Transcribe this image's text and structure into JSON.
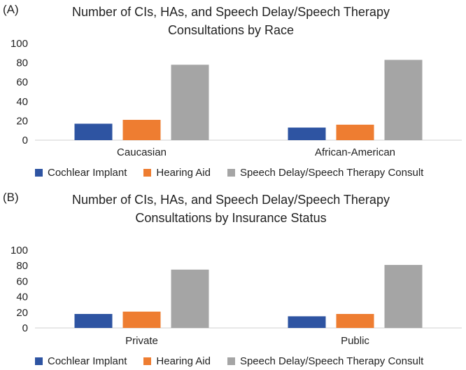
{
  "chart_data": [
    {
      "type": "bar",
      "panel_label": "(A)",
      "title_lines": [
        "Number of CIs, HAs, and Speech Delay/Speech Therapy",
        "Consultations by Race"
      ],
      "categories": [
        "Caucasian",
        "African-American"
      ],
      "series": [
        {
          "name": "Cochlear Implant",
          "color": "#2E54A2",
          "values": [
            17,
            13
          ]
        },
        {
          "name": "Hearing Aid",
          "color": "#EE7D31",
          "values": [
            21,
            16
          ]
        },
        {
          "name": "Speech Delay/Speech Therapy Consult",
          "color": "#A5A5A5",
          "values": [
            78,
            83
          ]
        }
      ],
      "yticks": [
        "0",
        "20",
        "40",
        "60",
        "80",
        "100"
      ],
      "ylim": [
        0,
        100
      ],
      "grid": false,
      "legend_position": "bottom"
    },
    {
      "type": "bar",
      "panel_label": "(B)",
      "title_lines": [
        "Number of CIs, HAs, and Speech Delay/Speech Therapy",
        "Consultations by Insurance Status"
      ],
      "categories": [
        "Private",
        "Public"
      ],
      "series": [
        {
          "name": "Cochlear Implant",
          "color": "#2E54A2",
          "values": [
            18,
            15
          ]
        },
        {
          "name": "Hearing Aid",
          "color": "#EE7D31",
          "values": [
            21,
            18
          ]
        },
        {
          "name": "Speech Delay/Speech Therapy Consult",
          "color": "#A5A5A5",
          "values": [
            75,
            81
          ]
        }
      ],
      "yticks": [
        "0",
        "20",
        "40",
        "60",
        "80",
        "100"
      ],
      "ylim": [
        0,
        100
      ],
      "grid": false,
      "legend_position": "bottom"
    }
  ]
}
